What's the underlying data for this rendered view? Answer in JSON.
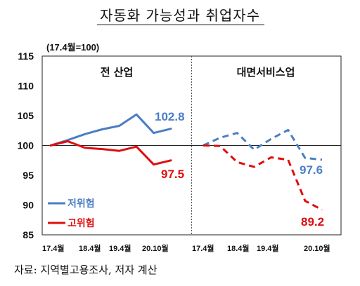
{
  "title": "자동화 가능성과 취업자수",
  "unit_note": "(17.4월=100)",
  "source": "자료: 지역별고용조사, 저자 계산",
  "panels": [
    {
      "title": "전 산업"
    },
    {
      "title": "대면서비스업"
    }
  ],
  "legend": {
    "low_risk": "저위험",
    "high_risk": "고위험"
  },
  "data_labels": {
    "all_low": "102.8",
    "all_high": "97.5",
    "face_low": "97.6",
    "face_high": "89.2"
  },
  "colors": {
    "low_risk": "#4A7EC4",
    "high_risk": "#E00D0D"
  },
  "chart_data": [
    {
      "type": "line",
      "title": "전 산업",
      "x_tick_labels": [
        "17.4월",
        "18.4월",
        "19.4월",
        "20.10월"
      ],
      "x": [
        "17.4",
        "17.10",
        "18.4",
        "18.10",
        "19.4",
        "19.10",
        "20.4",
        "20.10"
      ],
      "series": [
        {
          "name": "저위험",
          "style": "solid",
          "values": [
            100,
            100.9,
            101.9,
            102.7,
            103.3,
            105.2,
            102.1,
            102.8
          ]
        },
        {
          "name": "고위험",
          "style": "solid",
          "values": [
            100,
            100.7,
            99.6,
            99.4,
            99.1,
            99.8,
            96.8,
            97.5
          ]
        }
      ],
      "ylim": [
        85,
        115
      ],
      "yticks": [
        85,
        90,
        95,
        100,
        105,
        110,
        115
      ],
      "reference_line": 100,
      "legend_position": "bottom-left"
    },
    {
      "type": "line",
      "title": "대면서비스업",
      "x_tick_labels": [
        "17.4월",
        "18.4월",
        "19.4월",
        "20.10월"
      ],
      "x": [
        "17.4",
        "17.10",
        "18.4",
        "18.10",
        "19.4",
        "19.10",
        "20.4",
        "20.10"
      ],
      "series": [
        {
          "name": "저위험",
          "style": "dashed",
          "values": [
            100,
            101.3,
            102.1,
            99.3,
            101.1,
            102.6,
            97.9,
            97.6
          ]
        },
        {
          "name": "고위험",
          "style": "dashed",
          "values": [
            100,
            99.9,
            97.2,
            96.4,
            98.0,
            97.6,
            90.7,
            89.2
          ]
        }
      ],
      "ylim": [
        85,
        115
      ],
      "reference_line": 100
    }
  ]
}
